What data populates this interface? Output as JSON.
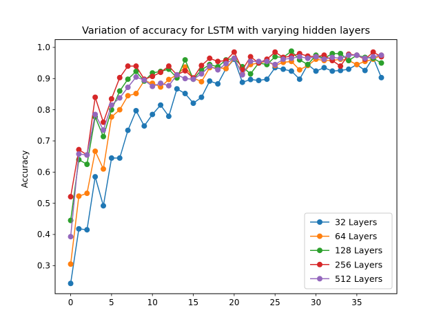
{
  "chart_data": {
    "type": "line",
    "title": "Variation of accuracy for LSTM with varying hidden layers",
    "xlabel": "",
    "ylabel": "Accuracy",
    "xlim": [
      -1.9,
      39.9
    ],
    "ylim": [
      0.21,
      1.025
    ],
    "xticks": [
      0,
      5,
      10,
      15,
      20,
      25,
      30,
      35
    ],
    "yticks": [
      0.3,
      0.4,
      0.5,
      0.6,
      0.7,
      0.8,
      0.9,
      1.0
    ],
    "ytick_labels": [
      "0.3",
      "0.4",
      "0.5",
      "0.6",
      "0.7",
      "0.8",
      "0.9",
      "1.0"
    ],
    "grid": false,
    "legend_position": "lower-right",
    "x": [
      0,
      1,
      2,
      3,
      4,
      5,
      6,
      7,
      8,
      9,
      10,
      11,
      12,
      13,
      14,
      15,
      16,
      17,
      18,
      19,
      20,
      21,
      22,
      23,
      24,
      25,
      26,
      27,
      28,
      29,
      30,
      31,
      32,
      33,
      34,
      35,
      36,
      37,
      38
    ],
    "series": [
      {
        "name": "32 Layers",
        "color": "#1f77b4",
        "values": [
          0.243,
          0.418,
          0.415,
          0.585,
          0.492,
          0.645,
          0.645,
          0.734,
          0.797,
          0.748,
          0.785,
          0.815,
          0.779,
          0.867,
          0.852,
          0.821,
          0.84,
          0.892,
          0.883,
          0.932,
          0.962,
          0.888,
          0.897,
          0.894,
          0.898,
          0.935,
          0.93,
          0.924,
          0.898,
          0.945,
          0.924,
          0.935,
          0.924,
          0.926,
          0.93,
          0.945,
          0.926,
          0.967,
          0.903
        ]
      },
      {
        "name": "64 Layers",
        "color": "#ff7f0e",
        "values": [
          0.305,
          0.523,
          0.532,
          0.667,
          0.61,
          0.777,
          0.8,
          0.845,
          0.852,
          0.893,
          0.885,
          0.873,
          0.897,
          0.912,
          0.937,
          0.902,
          0.89,
          0.935,
          0.935,
          0.932,
          0.965,
          0.915,
          0.945,
          0.95,
          0.955,
          0.942,
          0.952,
          0.955,
          0.928,
          0.942,
          0.962,
          0.958,
          0.958,
          0.962,
          0.958,
          0.945,
          0.955,
          0.962,
          0.975
        ]
      },
      {
        "name": "128 Layers",
        "color": "#2ca02c",
        "values": [
          0.445,
          0.64,
          0.625,
          0.777,
          0.714,
          0.8,
          0.86,
          0.898,
          0.923,
          0.892,
          0.918,
          0.923,
          0.93,
          0.902,
          0.96,
          0.898,
          0.928,
          0.945,
          0.938,
          0.96,
          0.965,
          0.938,
          0.915,
          0.95,
          0.945,
          0.97,
          0.968,
          0.988,
          0.96,
          0.945,
          0.975,
          0.965,
          0.98,
          0.98,
          0.958,
          0.975,
          0.968,
          0.965,
          0.95
        ]
      },
      {
        "name": "256 Layers",
        "color": "#d62728",
        "values": [
          0.521,
          0.672,
          0.655,
          0.84,
          0.76,
          0.835,
          0.903,
          0.94,
          0.94,
          0.898,
          0.907,
          0.92,
          0.94,
          0.912,
          0.925,
          0.902,
          0.942,
          0.965,
          0.955,
          0.958,
          0.985,
          0.928,
          0.97,
          0.95,
          0.962,
          0.985,
          0.968,
          0.972,
          0.98,
          0.972,
          0.97,
          0.975,
          0.958,
          0.94,
          0.978,
          0.975,
          0.962,
          0.985,
          0.97
        ]
      },
      {
        "name": "512 Layers",
        "color": "#9467bd",
        "values": [
          0.393,
          0.658,
          0.655,
          0.785,
          0.735,
          0.815,
          0.838,
          0.872,
          0.905,
          0.895,
          0.875,
          0.885,
          0.877,
          0.912,
          0.9,
          0.898,
          0.915,
          0.94,
          0.928,
          0.948,
          0.965,
          0.912,
          0.955,
          0.955,
          0.955,
          0.945,
          0.962,
          0.965,
          0.97,
          0.965,
          0.97,
          0.962,
          0.968,
          0.965,
          0.975,
          0.975,
          0.965,
          0.97,
          0.975
        ]
      }
    ]
  }
}
